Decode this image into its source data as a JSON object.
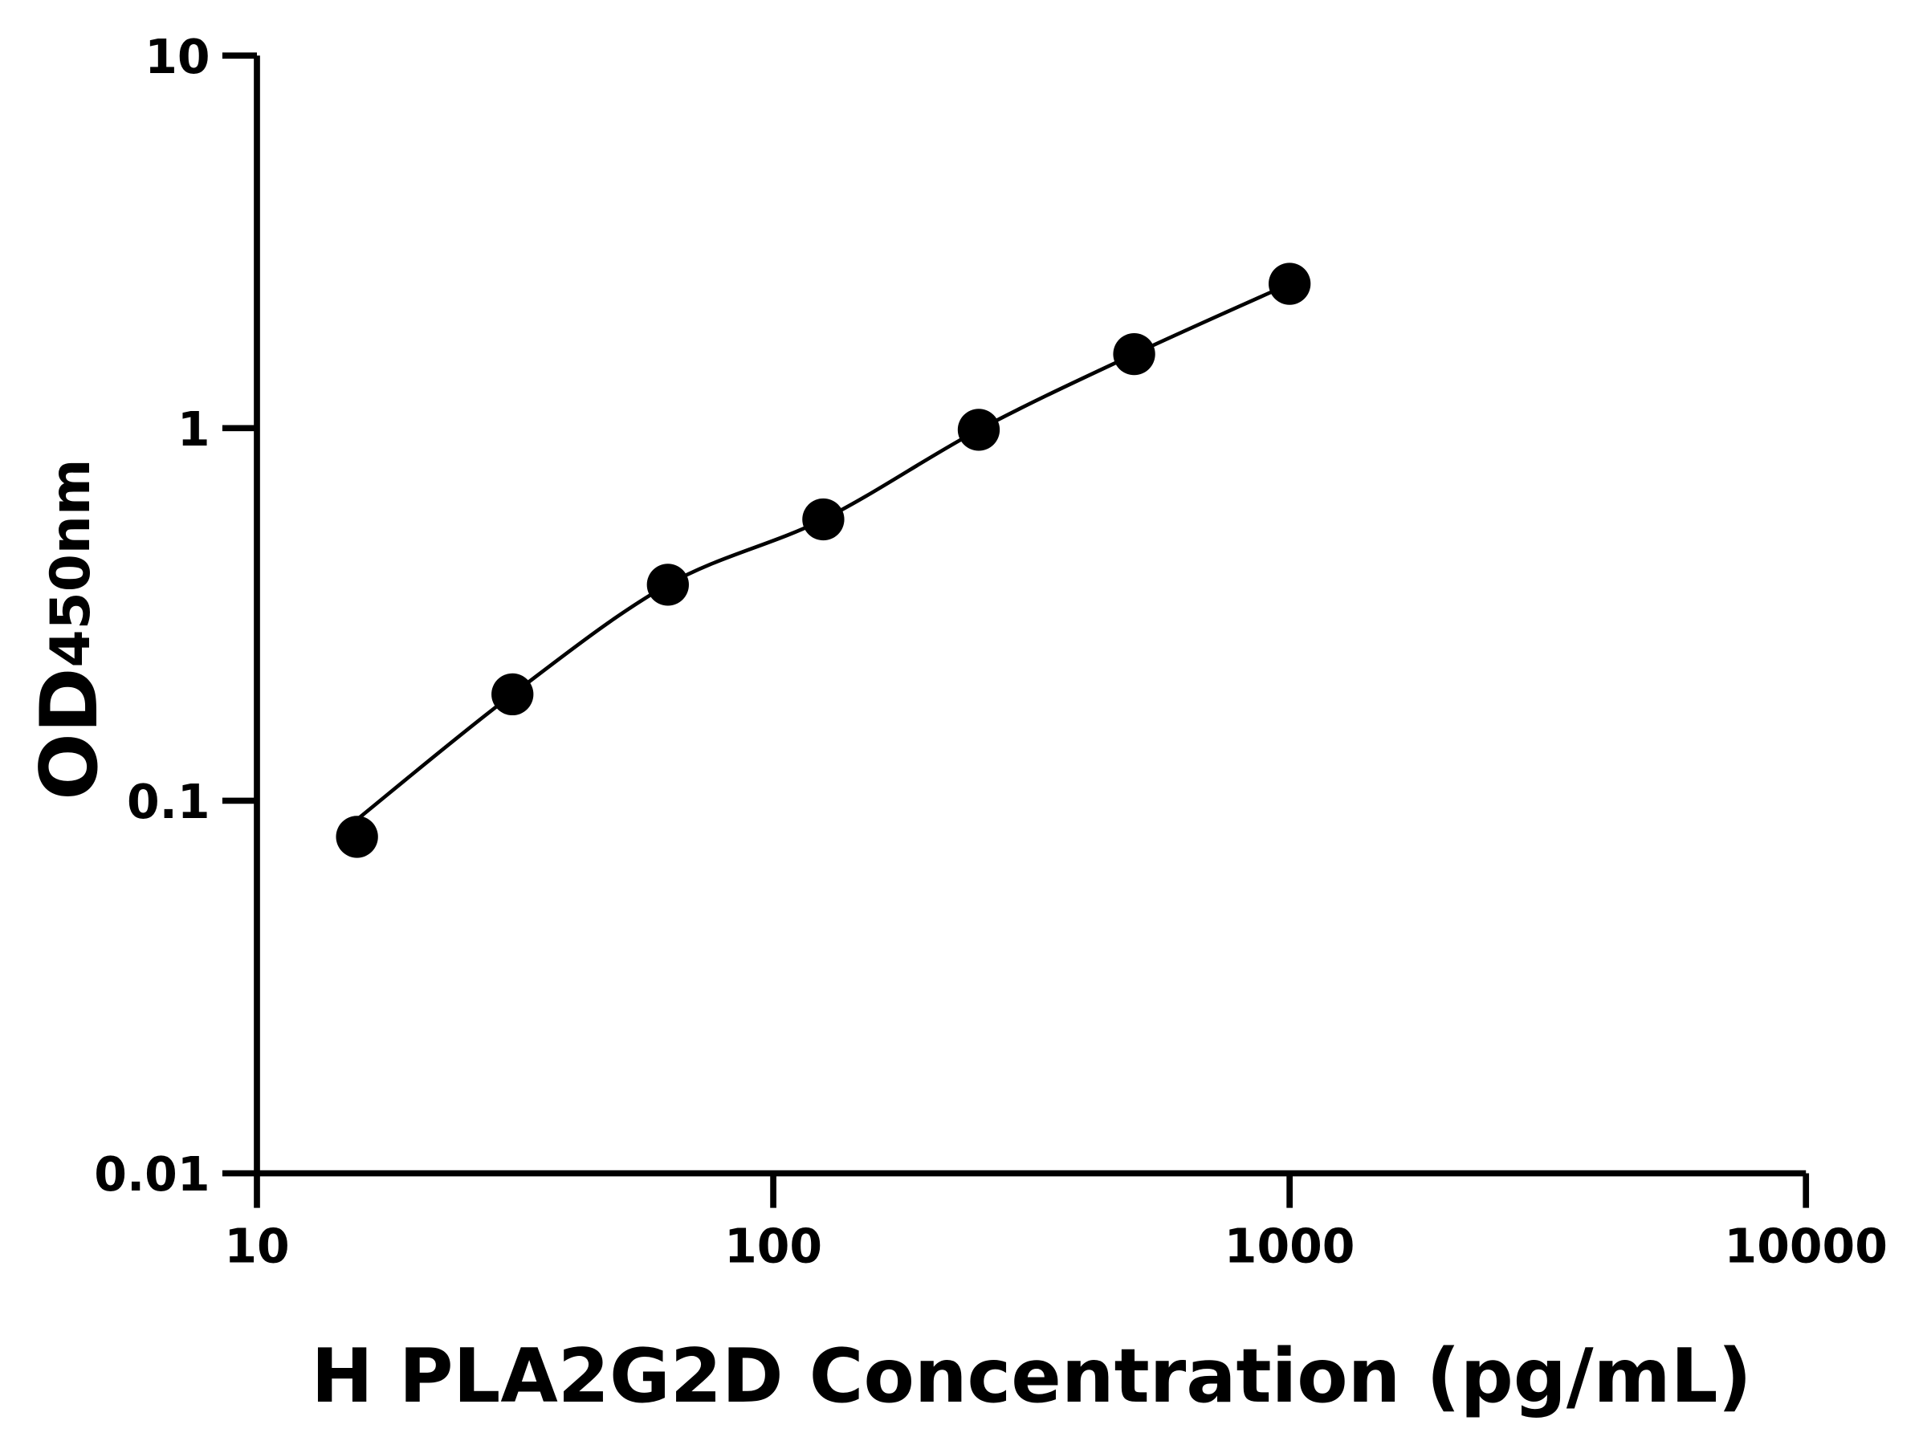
{
  "chart_data": {
    "type": "scatter",
    "title": "",
    "xlabel": "H PLA2G2D Concentration (pg/mL)",
    "ylabel_main": "OD",
    "ylabel_sub": "450nm",
    "x_scale": "log",
    "y_scale": "log",
    "xlim": [
      10,
      10000
    ],
    "ylim": [
      0.01,
      10
    ],
    "x_ticks": [
      "10",
      "100",
      "1000",
      "10000"
    ],
    "y_ticks": [
      "0.01",
      "0.1",
      "1",
      "10"
    ],
    "grid": false,
    "fit_line": true,
    "color": "#000000",
    "points": [
      {
        "x": 15.625,
        "y": 0.08
      },
      {
        "x": 31.25,
        "y": 0.193
      },
      {
        "x": 62.5,
        "y": 0.38
      },
      {
        "x": 125,
        "y": 0.569
      },
      {
        "x": 250,
        "y": 0.99
      },
      {
        "x": 500,
        "y": 1.58
      },
      {
        "x": 1000,
        "y": 2.44
      }
    ]
  }
}
